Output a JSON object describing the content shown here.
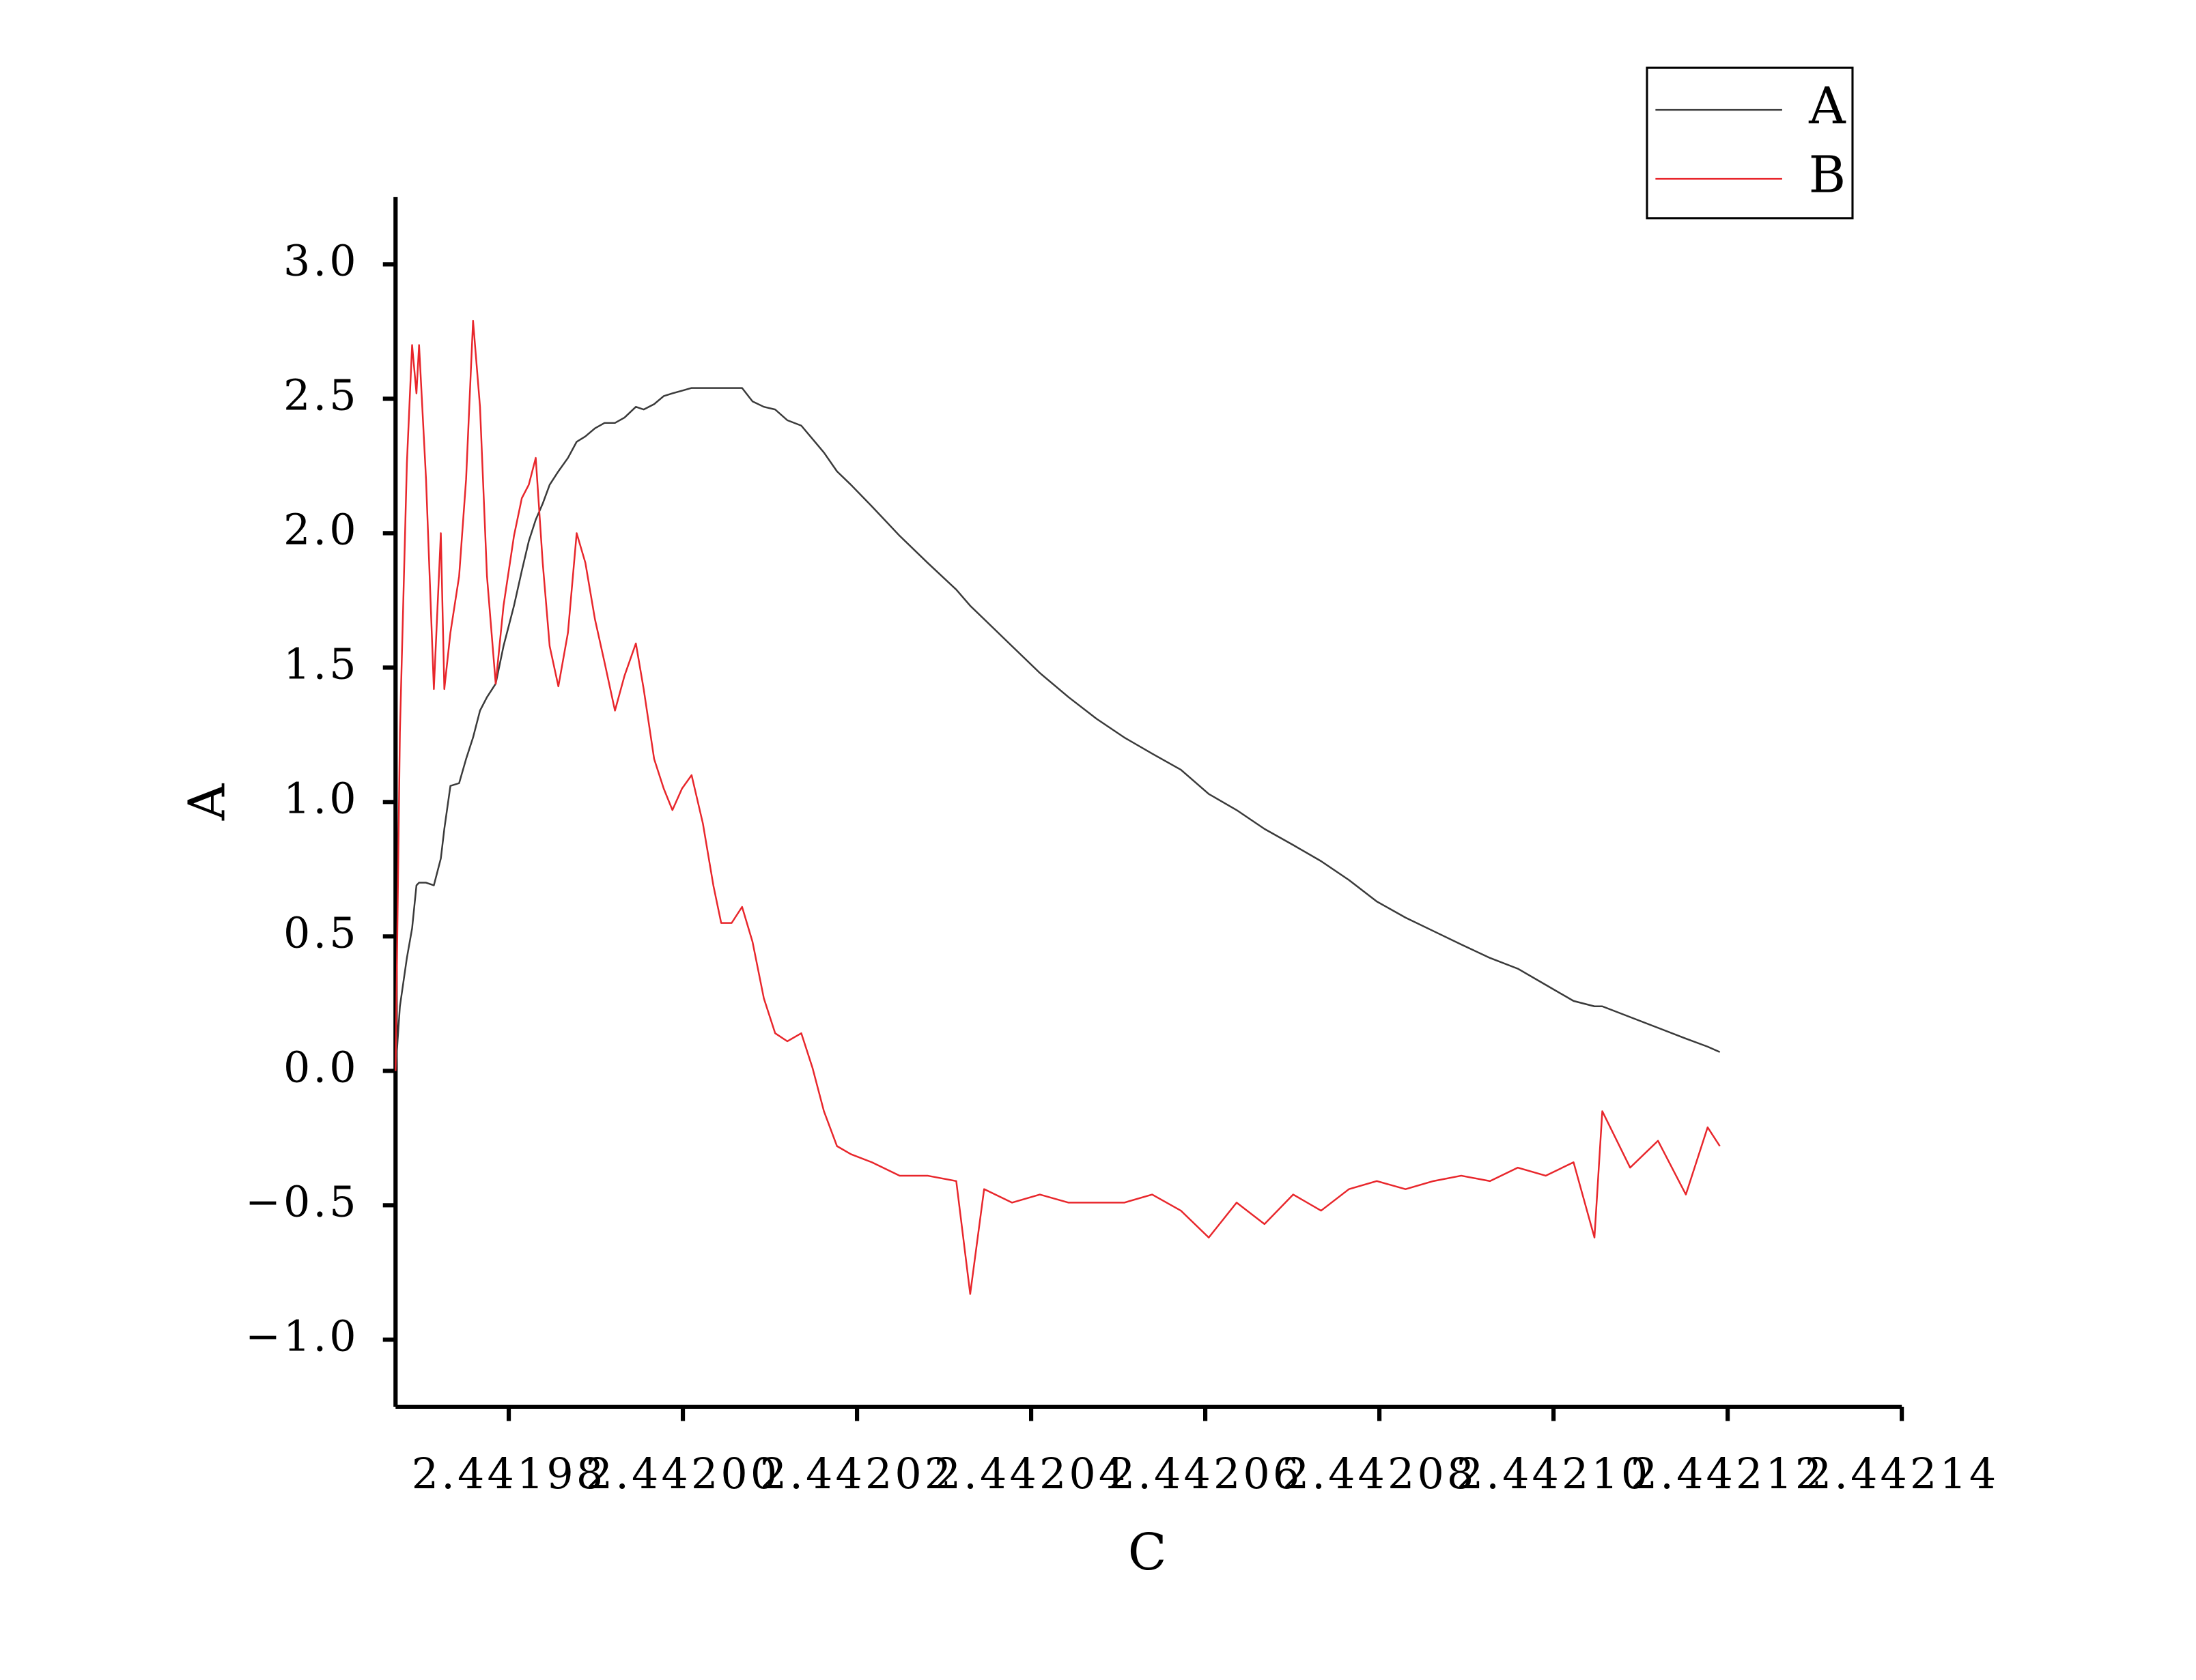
{
  "chart_data": {
    "type": "line",
    "x_label": "C",
    "y_label": "A",
    "x": [
      2.441967,
      2.4419675,
      2.4419683,
      2.4419689,
      2.4419694,
      2.4419697,
      2.4419705,
      2.4419714,
      2.4419722,
      2.4419726,
      2.4419733,
      2.4419743,
      2.4419751,
      2.4419759,
      2.4419767,
      2.4419775,
      2.4419785,
      2.4419794,
      2.4419806,
      2.4419815,
      2.4419823,
      2.4419831,
      2.4419839,
      2.4419847,
      2.4419857,
      2.4419868,
      2.4419878,
      2.4419888,
      2.4419899,
      2.441991,
      2.4419922,
      2.4419933,
      2.4419946,
      2.4419955,
      2.4419967,
      2.4419978,
      2.4419988,
      2.4419999,
      2.442001,
      2.4420023,
      2.4420035,
      2.4420044,
      2.4420056,
      2.4420068,
      2.442008,
      2.4420093,
      2.4420106,
      2.442012,
      2.4420136,
      2.4420149,
      2.4420162,
      2.4420177,
      2.4420193,
      2.4420217,
      2.4420249,
      2.4420281,
      2.4420314,
      2.442033,
      2.4420346,
      2.4420378,
      2.442041,
      2.4420443,
      2.4420475,
      2.4420507,
      2.4420539,
      2.4420572,
      2.4420604,
      2.4420636,
      2.4420668,
      2.4420701,
      2.4420733,
      2.4420765,
      2.4420797,
      2.442083,
      2.4420862,
      2.4420894,
      2.4420927,
      2.4420959,
      2.4420991,
      2.4421023,
      2.4421047,
      2.4421056,
      2.4421088,
      2.442112,
      2.4421152,
      2.4421177,
      2.4421191
    ],
    "series": [
      {
        "name": "A",
        "color": "#3a3a3a",
        "values": [
          0.0,
          0.24,
          0.42,
          0.53,
          0.69,
          0.7,
          0.7,
          0.69,
          0.79,
          0.9,
          1.06,
          1.07,
          1.16,
          1.24,
          1.34,
          1.39,
          1.44,
          1.58,
          1.73,
          1.86,
          1.97,
          2.05,
          2.11,
          2.18,
          2.23,
          2.28,
          2.34,
          2.36,
          2.39,
          2.41,
          2.41,
          2.43,
          2.47,
          2.46,
          2.48,
          2.51,
          2.52,
          2.53,
          2.54,
          2.54,
          2.54,
          2.54,
          2.54,
          2.54,
          2.49,
          2.47,
          2.46,
          2.42,
          2.4,
          2.35,
          2.3,
          2.23,
          2.18,
          2.1,
          1.99,
          1.89,
          1.79,
          1.73,
          1.68,
          1.58,
          1.48,
          1.39,
          1.31,
          1.24,
          1.18,
          1.12,
          1.03,
          0.97,
          0.9,
          0.84,
          0.78,
          0.71,
          0.63,
          0.57,
          0.52,
          0.47,
          0.42,
          0.38,
          0.32,
          0.26,
          0.24,
          0.24,
          0.2,
          0.16,
          0.12,
          0.09,
          0.07
        ]
      },
      {
        "name": "B",
        "color": "#e8262b",
        "values": [
          0.0,
          1.26,
          2.26,
          2.7,
          2.52,
          2.7,
          2.2,
          1.42,
          2.0,
          1.42,
          1.63,
          1.84,
          2.2,
          2.79,
          2.47,
          1.84,
          1.44,
          1.73,
          1.99,
          2.13,
          2.18,
          2.28,
          1.89,
          1.58,
          1.43,
          1.63,
          2.0,
          1.89,
          1.68,
          1.52,
          1.34,
          1.47,
          1.59,
          1.42,
          1.16,
          1.05,
          0.97,
          1.05,
          1.1,
          0.92,
          0.69,
          0.55,
          0.55,
          0.61,
          0.48,
          0.27,
          0.14,
          0.11,
          0.14,
          0.01,
          -0.15,
          -0.28,
          -0.31,
          -0.34,
          -0.39,
          -0.39,
          -0.41,
          -0.83,
          -0.44,
          -0.49,
          -0.46,
          -0.49,
          -0.49,
          -0.49,
          -0.46,
          -0.52,
          -0.62,
          -0.49,
          -0.57,
          -0.46,
          -0.52,
          -0.44,
          -0.41,
          -0.44,
          -0.41,
          -0.39,
          -0.41,
          -0.36,
          -0.39,
          -0.34,
          -0.62,
          -0.15,
          -0.36,
          -0.26,
          -0.46,
          -0.21,
          -0.28
        ]
      }
    ],
    "xlim": [
      2.441967,
      2.44214
    ],
    "xticks": [
      2.44198,
      {
        "value": 2.442,
        "label": "2.44200"
      },
      2.44202,
      2.44204,
      2.44206,
      2.44208,
      {
        "value": 2.4421,
        "label": "2.44210"
      },
      2.44212,
      2.44214
    ],
    "ylim": [
      -1.25,
      3.25
    ],
    "yticks": [
      {
        "value": -1,
        "label": "−1.0"
      },
      {
        "value": -0.5,
        "label": "−0.5"
      },
      {
        "value": 0,
        "label": "0.0"
      },
      0.5,
      {
        "value": 1,
        "label": "1.0"
      },
      1.5,
      {
        "value": 2,
        "label": "2.0"
      },
      2.5,
      {
        "value": 3,
        "label": "3.0"
      }
    ],
    "grid": false,
    "legend_position": "top-right"
  }
}
